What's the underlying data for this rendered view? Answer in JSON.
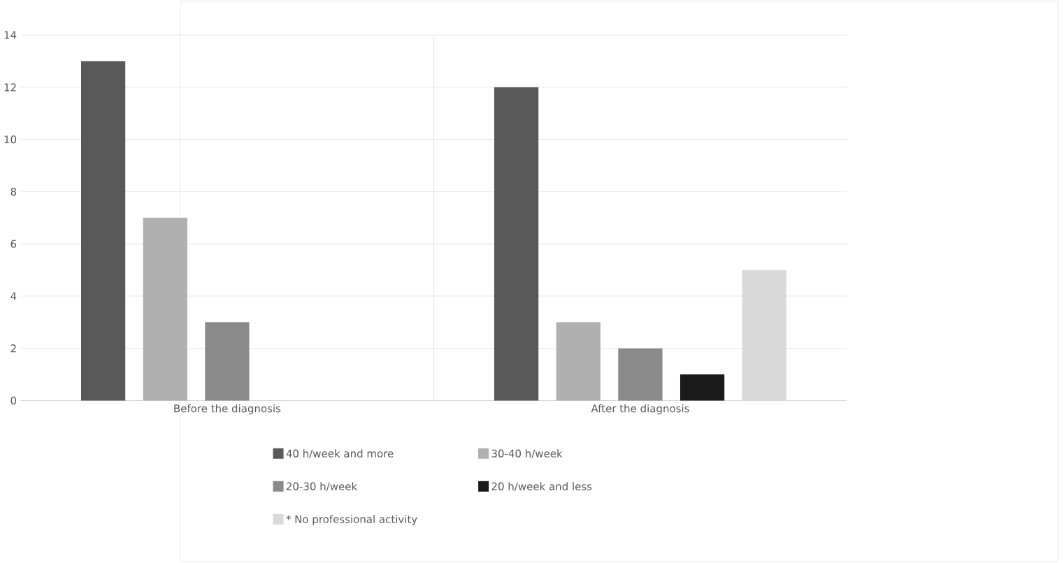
{
  "chart_data": {
    "type": "bar",
    "categories": [
      "Before the diagnosis",
      "After the diagnosis"
    ],
    "series": [
      {
        "name": "40 h/week and more",
        "color": "#595959",
        "values": [
          13,
          12
        ]
      },
      {
        "name": "30-40 h/week",
        "color": "#b0b0b0",
        "values": [
          7,
          3
        ]
      },
      {
        "name": "20-30 h/week",
        "color": "#8a8a8a",
        "values": [
          3,
          2
        ]
      },
      {
        "name": "20 h/week and less",
        "color": "#1a1a1a",
        "values": [
          0,
          1
        ]
      },
      {
        "name": "* No professional activity",
        "color": "#d9d9d9",
        "values": [
          0,
          5
        ]
      }
    ],
    "ylim": [
      0,
      14
    ],
    "yticks": [
      0,
      2,
      4,
      6,
      8,
      10,
      12,
      14
    ],
    "grid": "y",
    "legend": "bottom"
  }
}
